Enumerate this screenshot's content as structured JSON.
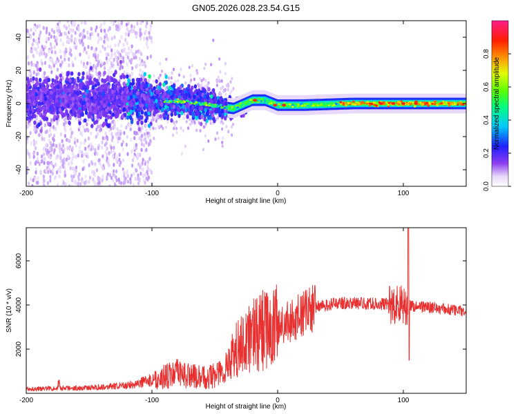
{
  "title": "GN05.2026.028.23.54.G15",
  "chart_data": [
    {
      "type": "heatmap",
      "xlabel": "Height of straight line (km)",
      "ylabel": "Frequency (Hz)",
      "xlim": [
        -200,
        150
      ],
      "ylim": [
        -50,
        50
      ],
      "xticks": [
        -200,
        -100,
        0,
        100
      ],
      "yticks": [
        -40,
        -20,
        0,
        20,
        40
      ],
      "colorbar": {
        "label": "Normalized spectral amplitude",
        "range": [
          0,
          1
        ],
        "ticks": [
          0.0,
          0.2,
          0.4,
          0.6,
          0.8
        ]
      },
      "ridge": [
        {
          "x": -200,
          "y": 2
        },
        {
          "x": -150,
          "y": 3
        },
        {
          "x": -100,
          "y": 2
        },
        {
          "x": -70,
          "y": 1
        },
        {
          "x": -45,
          "y": -2
        },
        {
          "x": -35,
          "y": -3
        },
        {
          "x": -20,
          "y": 2
        },
        {
          "x": -10,
          "y": 2
        },
        {
          "x": 0,
          "y": -1
        },
        {
          "x": 20,
          "y": -1
        },
        {
          "x": 60,
          "y": 0
        },
        {
          "x": 100,
          "y": 0
        },
        {
          "x": 150,
          "y": 0
        }
      ]
    },
    {
      "type": "line",
      "xlabel": "Height of straight line (km)",
      "ylabel": "SNR (10 * v/v)",
      "xlim": [
        -200,
        150
      ],
      "ylim": [
        0,
        7500
      ],
      "xticks": [
        -200,
        -100,
        0,
        100
      ],
      "yticks": [
        2000,
        4000,
        6000
      ],
      "color": "#e83030",
      "envelope": [
        {
          "x": -200,
          "y": 200
        },
        {
          "x": -150,
          "y": 250
        },
        {
          "x": -120,
          "y": 350
        },
        {
          "x": -100,
          "y": 600
        },
        {
          "x": -80,
          "y": 900
        },
        {
          "x": -60,
          "y": 700
        },
        {
          "x": -45,
          "y": 900
        },
        {
          "x": -30,
          "y": 2200
        },
        {
          "x": -15,
          "y": 2800
        },
        {
          "x": 0,
          "y": 3000
        },
        {
          "x": 15,
          "y": 3400
        },
        {
          "x": 30,
          "y": 3900
        },
        {
          "x": 50,
          "y": 4100
        },
        {
          "x": 80,
          "y": 4050
        },
        {
          "x": 100,
          "y": 4000
        },
        {
          "x": 120,
          "y": 3900
        },
        {
          "x": 150,
          "y": 3700
        }
      ],
      "spike": {
        "x": 104,
        "max": 7500,
        "min": 1500
      }
    }
  ]
}
